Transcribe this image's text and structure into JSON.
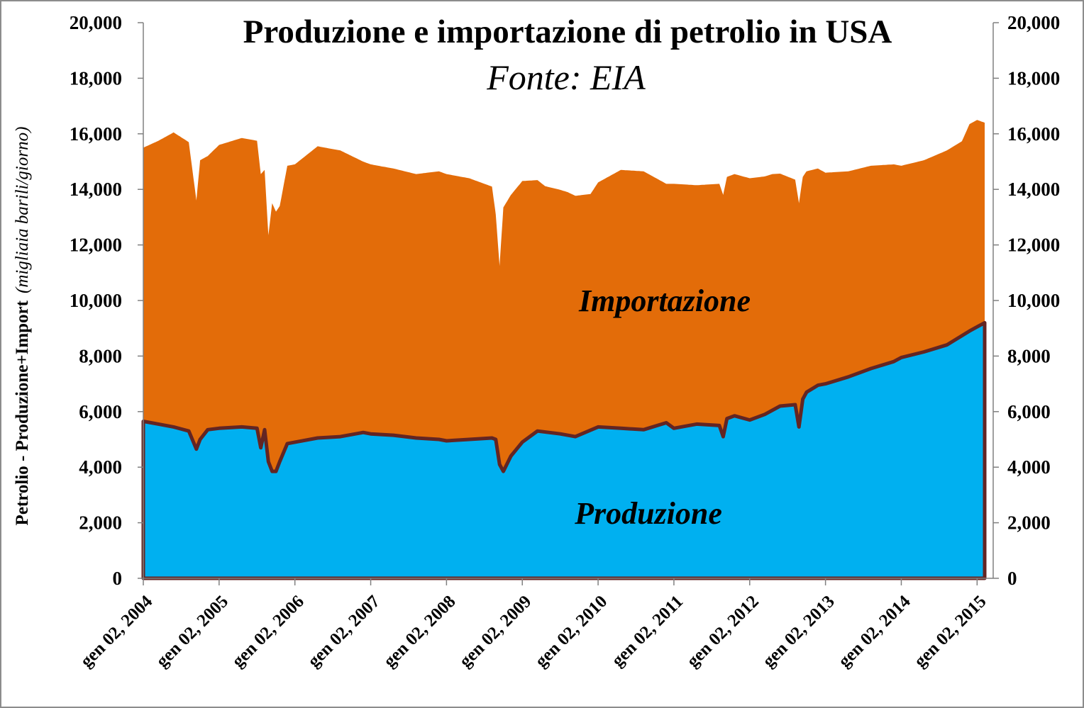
{
  "chart_data": {
    "type": "area",
    "title": "Produzione  e importazione di petrolio in USA",
    "subtitle": "Fonte: EIA",
    "ylabel": "Petrolio - Produzione+Import",
    "ylabel_unit": "(migliaia barili/giorno)",
    "ylim": [
      0,
      20000
    ],
    "y_ticks": [
      "0",
      "2,000",
      "4,000",
      "6,000",
      "8,000",
      "10,000",
      "12,000",
      "14,000",
      "16,000",
      "18,000",
      "20,000"
    ],
    "y_ticks_right": [
      "0",
      "2,000",
      "4,000",
      "6,000",
      "8,000",
      "10,000",
      "12,000",
      "14,000",
      "16,000",
      "18,000",
      "20,000"
    ],
    "x_ticks": [
      "gen 02, 2004",
      "gen 02, 2005",
      "gen 02, 2006",
      "gen 02, 2007",
      "gen 02, 2008",
      "gen 02, 2009",
      "gen 02, 2010",
      "gen 02, 2011",
      "gen 02, 2012",
      "gen 02, 2013",
      "gen 02, 2014",
      "gen 02, 2015"
    ],
    "x_range": [
      2004.0,
      2015.1
    ],
    "grid": false,
    "legend": "none",
    "series_labels": {
      "imports": "Importazione",
      "production": "Produzione"
    },
    "colors": {
      "production": "#00b0f0",
      "imports": "#e36c09",
      "production_line": "#632523"
    },
    "series": [
      {
        "name": "Produzione",
        "x": [
          2004.0,
          2004.2,
          2004.4,
          2004.6,
          2004.7,
          2004.75,
          2004.85,
          2005.0,
          2005.3,
          2005.5,
          2005.55,
          2005.6,
          2005.65,
          2005.7,
          2005.75,
          2005.8,
          2005.9,
          2006.0,
          2006.3,
          2006.6,
          2006.9,
          2007.0,
          2007.3,
          2007.6,
          2007.9,
          2008.0,
          2008.3,
          2008.6,
          2008.65,
          2008.7,
          2008.75,
          2008.85,
          2009.0,
          2009.2,
          2009.5,
          2009.7,
          2010.0,
          2010.3,
          2010.6,
          2010.9,
          2011.0,
          2011.3,
          2011.6,
          2011.65,
          2011.7,
          2011.8,
          2012.0,
          2012.2,
          2012.4,
          2012.6,
          2012.65,
          2012.7,
          2012.75,
          2012.9,
          2013.0,
          2013.3,
          2013.6,
          2013.9,
          2014.0,
          2014.3,
          2014.6,
          2014.9,
          2015.0,
          2015.1
        ],
        "values": [
          5650,
          5550,
          5450,
          5300,
          4650,
          5000,
          5350,
          5400,
          5450,
          5400,
          4700,
          5350,
          4200,
          3850,
          3850,
          4200,
          4850,
          4900,
          5050,
          5100,
          5250,
          5200,
          5150,
          5050,
          5000,
          4950,
          5000,
          5050,
          5000,
          4100,
          3850,
          4400,
          4900,
          5300,
          5200,
          5100,
          5450,
          5400,
          5350,
          5600,
          5400,
          5550,
          5500,
          5100,
          5750,
          5850,
          5700,
          5900,
          6200,
          6250,
          5450,
          6450,
          6700,
          6950,
          7000,
          7250,
          7550,
          7800,
          7950,
          8150,
          8400,
          8900,
          9050,
          9200
        ]
      },
      {
        "name": "Importazione",
        "x": [
          2004.0,
          2004.2,
          2004.4,
          2004.6,
          2004.7,
          2004.75,
          2004.85,
          2005.0,
          2005.3,
          2005.5,
          2005.6,
          2005.65,
          2005.7,
          2005.75,
          2005.8,
          2005.9,
          2006.0,
          2006.3,
          2006.6,
          2006.9,
          2007.0,
          2007.3,
          2007.6,
          2007.9,
          2008.0,
          2008.3,
          2008.6,
          2008.7,
          2008.75,
          2008.85,
          2009.0,
          2009.3,
          2009.6,
          2009.9,
          2010.0,
          2010.3,
          2010.6,
          2010.9,
          2011.0,
          2011.3,
          2011.6,
          2011.9,
          2012.0,
          2012.3,
          2012.6,
          2012.9,
          2013.0,
          2013.3,
          2013.6,
          2013.9,
          2014.0,
          2014.3,
          2014.6,
          2014.8,
          2014.9,
          2015.0,
          2015.1
        ],
        "values": [
          9850,
          10200,
          10600,
          10400,
          8950,
          10050,
          9850,
          10200,
          10400,
          10350,
          9350,
          8150,
          9650,
          9350,
          9200,
          10000,
          10000,
          10500,
          10300,
          9750,
          9700,
          9600,
          9500,
          9650,
          9600,
          9400,
          9050,
          7150,
          9500,
          9400,
          9400,
          8850,
          8750,
          8500,
          8800,
          9300,
          9300,
          8600,
          8800,
          8600,
          8700,
          8700,
          8700,
          8500,
          8100,
          7800,
          7600,
          7400,
          7300,
          7100,
          6900,
          6900,
          7000,
          7000,
          7450,
          7450,
          7200
        ]
      }
    ]
  }
}
